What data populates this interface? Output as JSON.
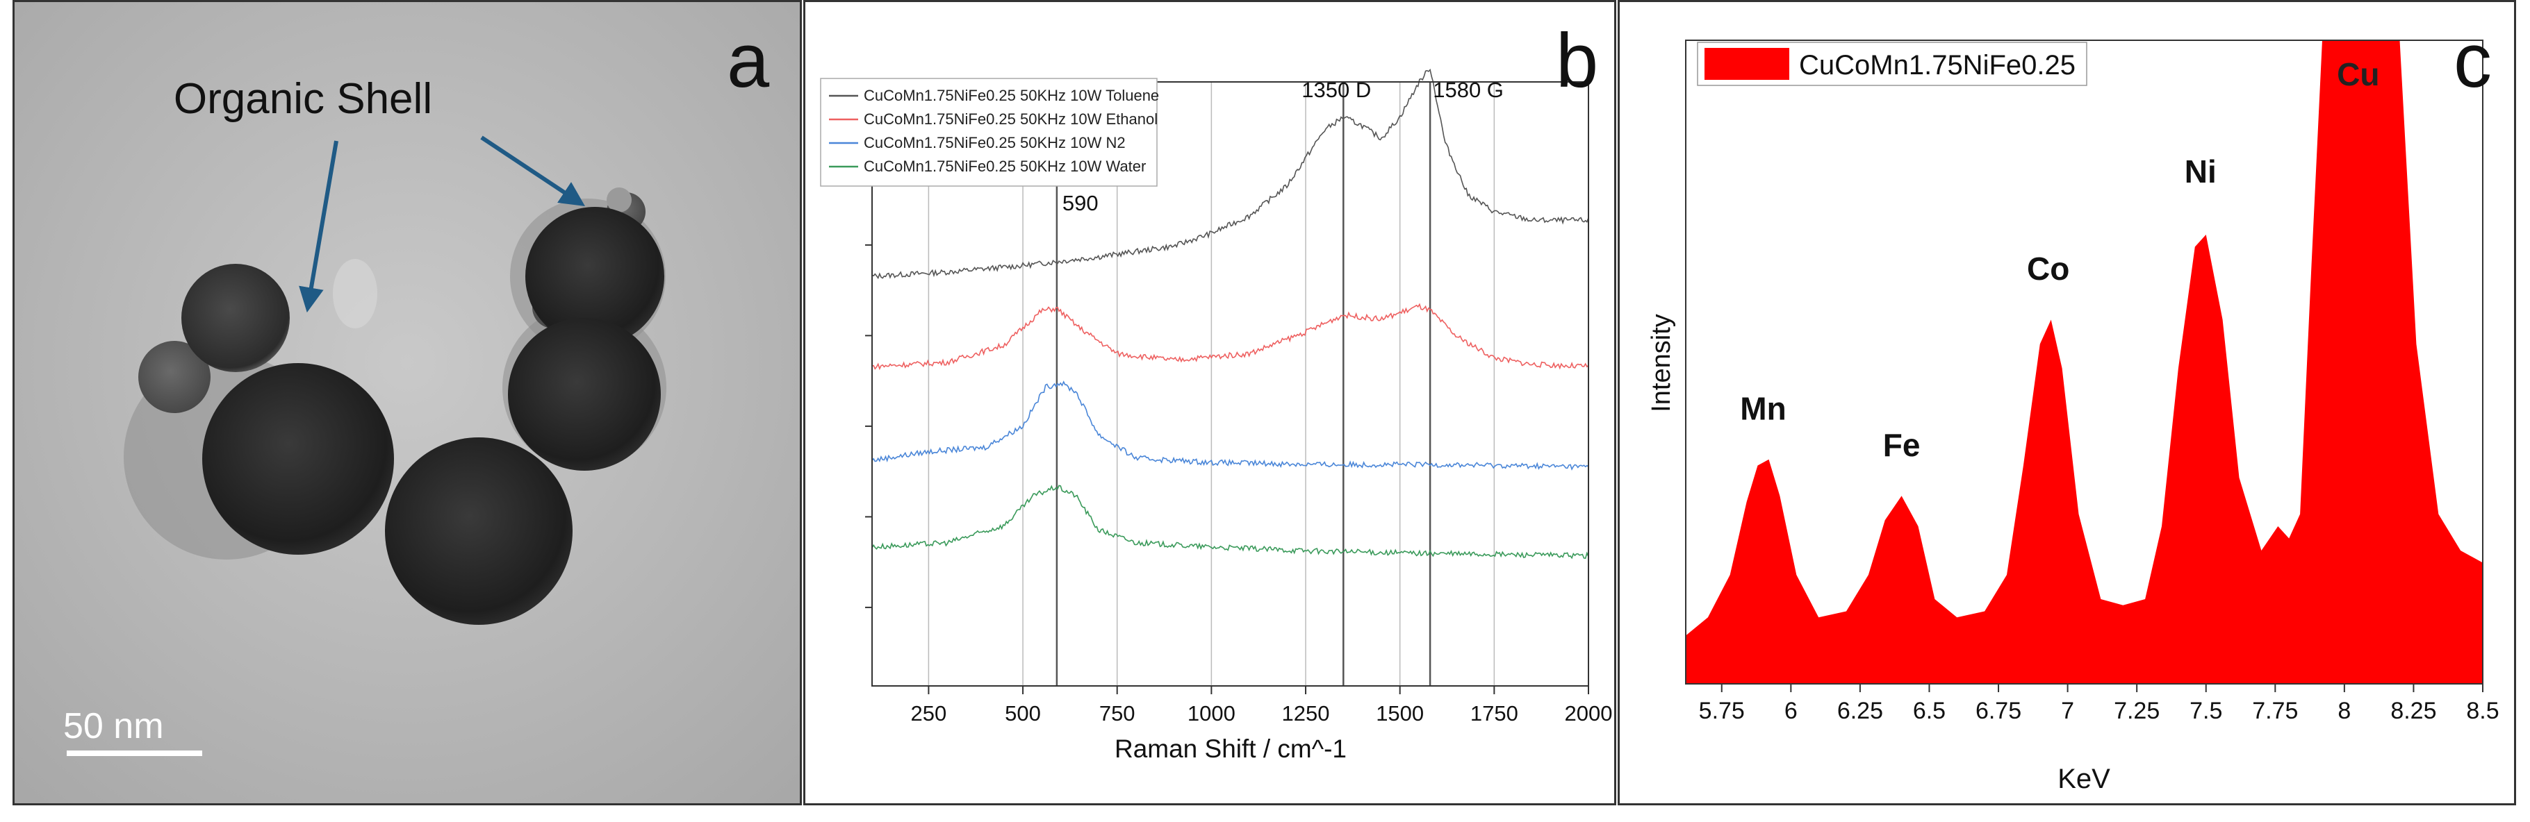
{
  "panel_a": {
    "letter": "a",
    "annotation": "Organic Shell",
    "scale_bar": "50 nm"
  },
  "panel_b": {
    "letter": "b",
    "xlabel": "Raman Shift / cm^-1",
    "x_ticks": [
      "250",
      "500",
      "750",
      "1000",
      "1250",
      "1500",
      "1750",
      "2000"
    ],
    "xlim": [
      100,
      2000
    ],
    "peak_labels": [
      "1350 D",
      "1580 G",
      "590"
    ],
    "legend": [
      {
        "name": "CuCoMn1.75NiFe0.25 50KHz 10W Toluene",
        "color": "#555555"
      },
      {
        "name": "CuCoMn1.75NiFe0.25 50KHz 10W Ethanol",
        "color": "#ee6060"
      },
      {
        "name": "CuCoMn1.75NiFe0.25 50KHz 10W N2",
        "color": "#4a86d8"
      },
      {
        "name": "CuCoMn1.75NiFe0.25 50KHz 10W Water",
        "color": "#3a9a5a"
      }
    ]
  },
  "panel_c": {
    "letter": "c",
    "legend": "CuCoMn1.75NiFe0.25",
    "xlabel": "KeV",
    "ylabel": "Intensity",
    "x_ticks": [
      "5.75",
      "6",
      "6.25",
      "6.5",
      "6.75",
      "7",
      "7.25",
      "7.5",
      "7.75",
      "8",
      "8.25",
      "8.5"
    ],
    "peak_labels": [
      "Mn",
      "Fe",
      "Co",
      "Ni",
      "Cu"
    ],
    "fill_color": "#ff0000"
  },
  "chart_data": [
    {
      "type": "line",
      "title": "",
      "xlabel": "Raman Shift / cm^-1",
      "ylabel": "",
      "xlim": [
        100,
        2000
      ],
      "grid": true,
      "legend_position": "top-left",
      "reference_lines": [
        250,
        500,
        590,
        750,
        1000,
        1250,
        1350,
        1500,
        1580,
        1750
      ],
      "series": [
        {
          "name": "CuCoMn1.75NiFe0.25 50KHz 10W Toluene",
          "x": [
            100,
            300,
            500,
            700,
            900,
            1000,
            1100,
            1200,
            1300,
            1350,
            1400,
            1450,
            1500,
            1550,
            1580,
            1620,
            1680,
            1750,
            1850,
            2000
          ],
          "y": [
            0.0,
            0.02,
            0.05,
            0.09,
            0.14,
            0.2,
            0.28,
            0.42,
            0.68,
            0.74,
            0.7,
            0.64,
            0.74,
            0.9,
            0.97,
            0.62,
            0.38,
            0.3,
            0.26,
            0.26
          ]
        },
        {
          "name": "CuCoMn1.75NiFe0.25 50KHz 10W Ethanol",
          "x": [
            100,
            300,
            450,
            550,
            590,
            650,
            750,
            900,
            1100,
            1250,
            1350,
            1450,
            1550,
            1580,
            1650,
            1750,
            1850,
            2000
          ],
          "y": [
            0.0,
            0.02,
            0.1,
            0.26,
            0.27,
            0.18,
            0.06,
            0.03,
            0.06,
            0.16,
            0.24,
            0.22,
            0.28,
            0.26,
            0.14,
            0.04,
            0.01,
            0.0
          ]
        },
        {
          "name": "CuCoMn1.75NiFe0.25 50KHz 10W N2",
          "x": [
            100,
            250,
            400,
            500,
            560,
            600,
            640,
            700,
            800,
            1000,
            1300,
            1600,
            2000
          ],
          "y": [
            0.0,
            0.04,
            0.06,
            0.16,
            0.34,
            0.36,
            0.32,
            0.12,
            0.01,
            -0.01,
            -0.02,
            -0.02,
            -0.03
          ]
        },
        {
          "name": "CuCoMn1.75NiFe0.25 50KHz 10W Water",
          "x": [
            100,
            300,
            450,
            530,
            590,
            640,
            700,
            800,
            1000,
            1300,
            1600,
            2000
          ],
          "y": [
            0.0,
            0.02,
            0.1,
            0.24,
            0.28,
            0.24,
            0.08,
            0.02,
            0.0,
            -0.02,
            -0.03,
            -0.04
          ]
        }
      ]
    },
    {
      "type": "area",
      "title": "",
      "xlabel": "KeV",
      "ylabel": "Intensity",
      "xlim": [
        5.62,
        8.5
      ],
      "legend": [
        "CuCoMn1.75NiFe0.25"
      ],
      "legend_position": "top-left",
      "peaks": [
        {
          "label": "Mn",
          "x": 5.9,
          "relative_height": 0.33
        },
        {
          "label": "Fe",
          "x": 6.4,
          "relative_height": 0.27
        },
        {
          "label": "Co",
          "x": 6.93,
          "relative_height": 0.56
        },
        {
          "label": "Ni",
          "x": 7.48,
          "relative_height": 0.72
        },
        {
          "label": "Cu",
          "x": 8.05,
          "relative_height": 1.0
        }
      ],
      "series": [
        {
          "name": "CuCoMn1.75NiFe0.25",
          "x": [
            5.62,
            5.7,
            5.78,
            5.84,
            5.88,
            5.92,
            5.96,
            6.02,
            6.1,
            6.2,
            6.28,
            6.34,
            6.4,
            6.46,
            6.52,
            6.6,
            6.7,
            6.78,
            6.84,
            6.9,
            6.94,
            6.98,
            7.04,
            7.12,
            7.2,
            7.28,
            7.34,
            7.4,
            7.46,
            7.5,
            7.56,
            7.62,
            7.7,
            7.76,
            7.8,
            7.84,
            7.88,
            7.92,
            8.2,
            8.26,
            8.34,
            8.42,
            8.5
          ],
          "y": [
            0.02,
            0.05,
            0.12,
            0.24,
            0.3,
            0.31,
            0.25,
            0.12,
            0.05,
            0.06,
            0.12,
            0.21,
            0.25,
            0.2,
            0.08,
            0.05,
            0.06,
            0.12,
            0.3,
            0.5,
            0.54,
            0.46,
            0.22,
            0.08,
            0.07,
            0.08,
            0.2,
            0.46,
            0.66,
            0.68,
            0.54,
            0.28,
            0.16,
            0.2,
            0.18,
            0.22,
            0.62,
            1.0,
            1.0,
            0.5,
            0.22,
            0.16,
            0.14
          ]
        }
      ]
    }
  ]
}
